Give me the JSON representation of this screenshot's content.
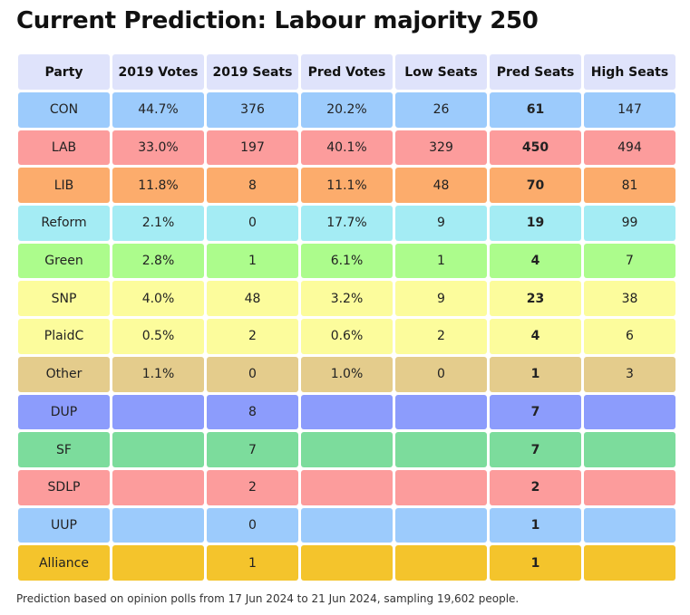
{
  "title": "Current Prediction: Labour majority 250",
  "footnote": "Prediction based on opinion polls from 17 Jun 2024 to 21 Jun 2024, sampling 19,602 people.",
  "chart_data": {
    "type": "table",
    "title": "Current Prediction: Labour majority 250",
    "columns": [
      "Party",
      "2019 Votes",
      "2019 Seats",
      "Pred Votes",
      "Low Seats",
      "Pred Seats",
      "High Seats"
    ],
    "rows": [
      {
        "party": "CON",
        "votes_2019": "44.7%",
        "seats_2019": "376",
        "pred_votes": "20.2%",
        "low_seats": "26",
        "pred_seats": "61",
        "high_seats": "147",
        "color": "#9ccbfc"
      },
      {
        "party": "LAB",
        "votes_2019": "33.0%",
        "seats_2019": "197",
        "pred_votes": "40.1%",
        "low_seats": "329",
        "pred_seats": "450",
        "high_seats": "494",
        "color": "#fc9c9c"
      },
      {
        "party": "LIB",
        "votes_2019": "11.8%",
        "seats_2019": "8",
        "pred_votes": "11.1%",
        "low_seats": "48",
        "pred_seats": "70",
        "high_seats": "81",
        "color": "#fcac6c"
      },
      {
        "party": "Reform",
        "votes_2019": "2.1%",
        "seats_2019": "0",
        "pred_votes": "17.7%",
        "low_seats": "9",
        "pred_seats": "19",
        "high_seats": "99",
        "color": "#a4ecf4"
      },
      {
        "party": "Green",
        "votes_2019": "2.8%",
        "seats_2019": "1",
        "pred_votes": "6.1%",
        "low_seats": "1",
        "pred_seats": "4",
        "high_seats": "7",
        "color": "#acfc8c"
      },
      {
        "party": "SNP",
        "votes_2019": "4.0%",
        "seats_2019": "48",
        "pred_votes": "3.2%",
        "low_seats": "9",
        "pred_seats": "23",
        "high_seats": "38",
        "color": "#fcfc9c"
      },
      {
        "party": "PlaidC",
        "votes_2019": "0.5%",
        "seats_2019": "2",
        "pred_votes": "0.6%",
        "low_seats": "2",
        "pred_seats": "4",
        "high_seats": "6",
        "color": "#fcfc9c"
      },
      {
        "party": "Other",
        "votes_2019": "1.1%",
        "seats_2019": "0",
        "pred_votes": "1.0%",
        "low_seats": "0",
        "pred_seats": "1",
        "high_seats": "3",
        "color": "#e4cc8c"
      },
      {
        "party": "DUP",
        "votes_2019": "",
        "seats_2019": "8",
        "pred_votes": "",
        "low_seats": "",
        "pred_seats": "7",
        "high_seats": "",
        "color": "#8c9cfc"
      },
      {
        "party": "SF",
        "votes_2019": "",
        "seats_2019": "7",
        "pred_votes": "",
        "low_seats": "",
        "pred_seats": "7",
        "high_seats": "",
        "color": "#7cdc9c"
      },
      {
        "party": "SDLP",
        "votes_2019": "",
        "seats_2019": "2",
        "pred_votes": "",
        "low_seats": "",
        "pred_seats": "2",
        "high_seats": "",
        "color": "#fc9c9c"
      },
      {
        "party": "UUP",
        "votes_2019": "",
        "seats_2019": "0",
        "pred_votes": "",
        "low_seats": "",
        "pred_seats": "1",
        "high_seats": "",
        "color": "#9ccbfc"
      },
      {
        "party": "Alliance",
        "votes_2019": "",
        "seats_2019": "1",
        "pred_votes": "",
        "low_seats": "",
        "pred_seats": "1",
        "high_seats": "",
        "color": "#f4c42c"
      }
    ]
  }
}
